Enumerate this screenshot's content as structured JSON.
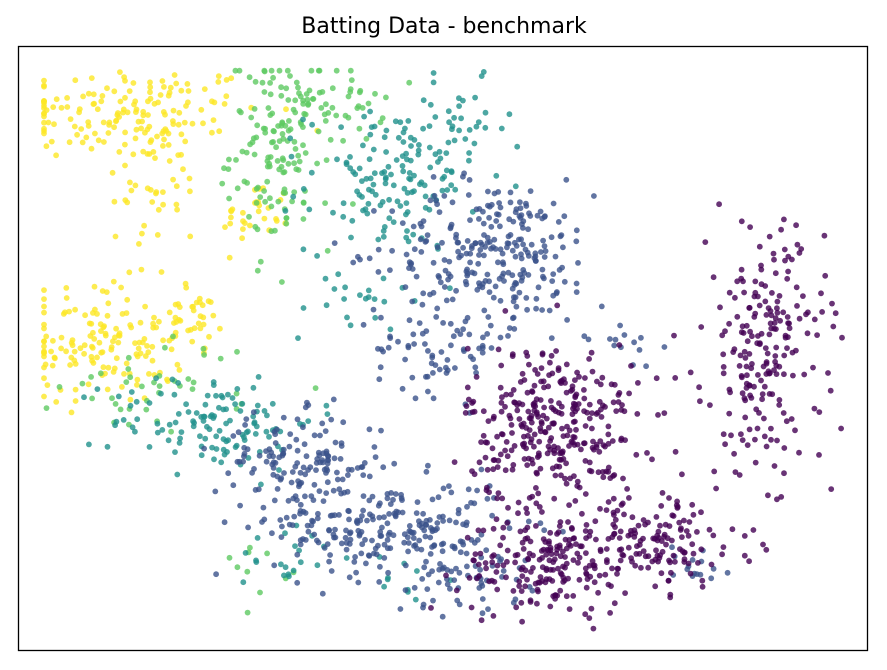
{
  "chart_data": {
    "type": "scatter",
    "title": "Batting Data - benchmark",
    "xlabel": "",
    "ylabel": "",
    "xlim": [
      0,
      100
    ],
    "ylim": [
      0,
      100
    ],
    "grid": false,
    "axis_ticks": false,
    "legend": "none",
    "marker_alpha": 0.8,
    "colormap": "viridis",
    "colors": {
      "c0": "#440154",
      "c1": "#3b528b",
      "c2": "#21918c",
      "c3": "#5ec962",
      "c4": "#fde725"
    },
    "clusters": [
      {
        "color": "c4",
        "cx": 13,
        "cy": 89,
        "sx": 8,
        "sy": 4,
        "n": 150
      },
      {
        "color": "c4",
        "cx": 16,
        "cy": 77,
        "sx": 3,
        "sy": 6,
        "n": 40
      },
      {
        "color": "c4",
        "cx": 28,
        "cy": 72,
        "sx": 2,
        "sy": 3,
        "n": 30
      },
      {
        "color": "c4",
        "cx": 10,
        "cy": 51,
        "sx": 5,
        "sy": 5,
        "n": 150
      },
      {
        "color": "c4",
        "cx": 20,
        "cy": 55,
        "sx": 2,
        "sy": 2,
        "n": 30
      },
      {
        "color": "c3",
        "cx": 31,
        "cy": 83,
        "sx": 3,
        "sy": 8,
        "n": 140
      },
      {
        "color": "c3",
        "cx": 37,
        "cy": 90,
        "sx": 3,
        "sy": 3,
        "n": 40
      },
      {
        "color": "c3",
        "cx": 17,
        "cy": 44,
        "sx": 6,
        "sy": 4,
        "n": 40
      },
      {
        "color": "c3",
        "cx": 28,
        "cy": 14,
        "sx": 2,
        "sy": 2,
        "n": 10
      },
      {
        "color": "c2",
        "cx": 44,
        "cy": 78,
        "sx": 5,
        "sy": 6,
        "n": 140
      },
      {
        "color": "c2",
        "cx": 52,
        "cy": 86,
        "sx": 3,
        "sy": 4,
        "n": 30
      },
      {
        "color": "c2",
        "cx": 40,
        "cy": 58,
        "sx": 3,
        "sy": 3,
        "n": 20
      },
      {
        "color": "c2",
        "cx": 23,
        "cy": 38,
        "sx": 6,
        "sy": 4,
        "n": 120
      },
      {
        "color": "c2",
        "cx": 32,
        "cy": 16,
        "sx": 3,
        "sy": 3,
        "n": 20
      },
      {
        "color": "c2",
        "cx": 44,
        "cy": 12,
        "sx": 3,
        "sy": 2,
        "n": 10
      },
      {
        "color": "c1",
        "cx": 56,
        "cy": 66,
        "sx": 6,
        "sy": 6,
        "n": 260
      },
      {
        "color": "c1",
        "cx": 50,
        "cy": 50,
        "sx": 4,
        "sy": 4,
        "n": 70
      },
      {
        "color": "c1",
        "cx": 33,
        "cy": 31,
        "sx": 5,
        "sy": 4,
        "n": 140
      },
      {
        "color": "c1",
        "cx": 44,
        "cy": 20,
        "sx": 7,
        "sy": 4,
        "n": 230
      },
      {
        "color": "c1",
        "cx": 52,
        "cy": 12,
        "sx": 4,
        "sy": 3,
        "n": 50
      },
      {
        "color": "c1",
        "cx": 71,
        "cy": 52,
        "sx": 2,
        "sy": 2,
        "n": 15
      },
      {
        "color": "c1",
        "cx": 80,
        "cy": 14,
        "sx": 2,
        "sy": 2,
        "n": 15
      },
      {
        "color": "c0",
        "cx": 63,
        "cy": 37,
        "sx": 5,
        "sy": 7,
        "n": 330
      },
      {
        "color": "c0",
        "cx": 62,
        "cy": 14,
        "sx": 5,
        "sy": 4,
        "n": 170
      },
      {
        "color": "c0",
        "cx": 74,
        "cy": 18,
        "sx": 6,
        "sy": 4,
        "n": 160
      },
      {
        "color": "c0",
        "cx": 88,
        "cy": 50,
        "sx": 3.5,
        "sy": 10,
        "n": 210
      }
    ]
  }
}
